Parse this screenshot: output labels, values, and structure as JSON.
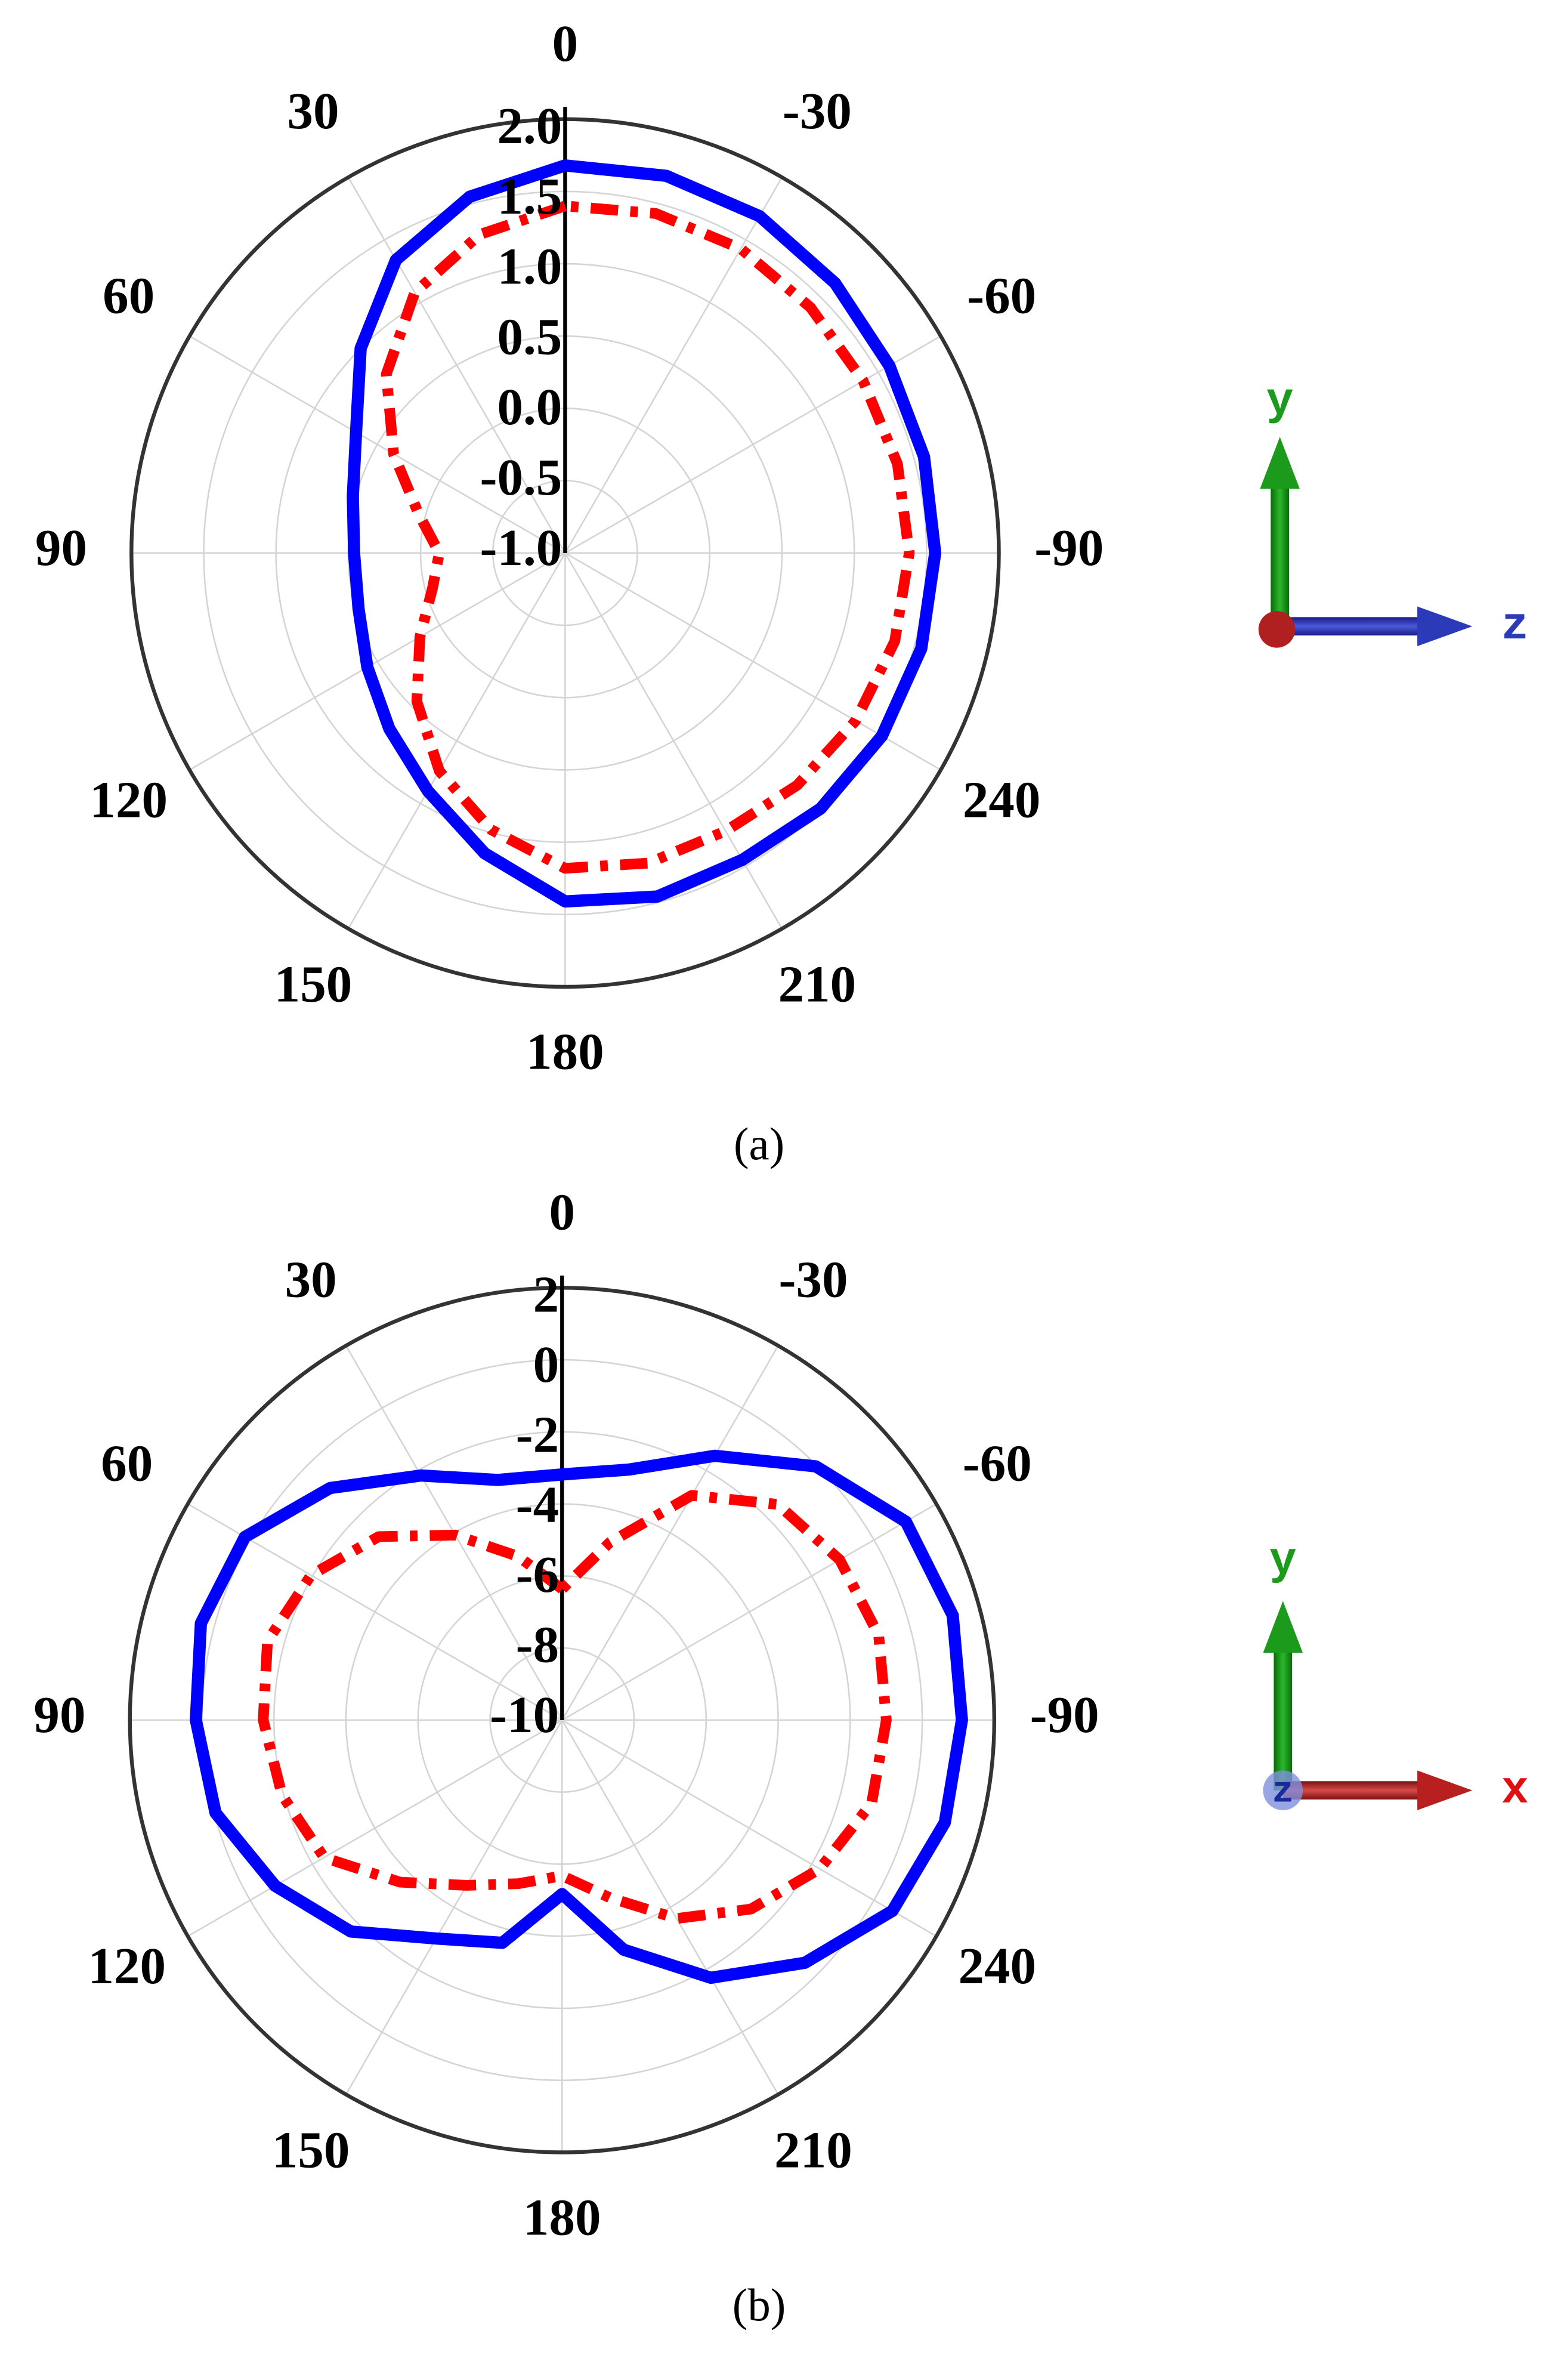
{
  "chart_data": [
    {
      "type": "polar",
      "caption": "(a)",
      "theta": [
        0,
        15,
        30,
        45,
        60,
        75,
        90,
        105,
        120,
        135,
        150,
        165,
        180,
        195,
        210,
        225,
        240,
        255,
        270,
        285,
        300,
        315,
        330,
        345
      ],
      "thetaticks": [
        0,
        -30,
        -60,
        -90,
        240,
        210,
        180,
        150,
        120,
        90,
        60,
        30
      ],
      "rlim": [
        -1,
        2
      ],
      "rticks": [
        {
          "value": -1,
          "label": "-1.0"
        },
        -0.5,
        {
          "value": 0,
          "label": "0.0"
        },
        0.5,
        {
          "value": 1,
          "label": "1.0"
        },
        1.5,
        {
          "value": 2,
          "label": "2.0"
        }
      ],
      "grid": true,
      "series": [
        {
          "color": "#0000ff",
          "style": "solid",
          "values": [
            1.68,
            1.55,
            1.34,
            1.0,
            0.67,
            0.52,
            0.46,
            0.48,
            0.58,
            0.72,
            0.9,
            1.15,
            1.41,
            1.46,
            1.45,
            1.5,
            1.53,
            1.55,
            1.56,
            1.57,
            1.59,
            1.64,
            1.69,
            1.7
          ]
        },
        {
          "color": "#ff0000",
          "style": "dashdot",
          "values": [
            1.4,
            1.28,
            1.08,
            0.75,
            0.37,
            0.05,
            -0.13,
            -0.05,
            0.16,
            0.45,
            0.74,
            0.98,
            1.18,
            1.22,
            1.22,
            1.27,
            1.32,
            1.36,
            1.38,
            1.38,
            1.38,
            1.4,
            1.43,
            1.43
          ]
        }
      ],
      "triad": {
        "up": "y",
        "right": "z"
      }
    },
    {
      "type": "polar",
      "caption": "(b)",
      "theta": [
        0,
        15,
        30,
        45,
        60,
        75,
        90,
        105,
        120,
        135,
        150,
        165,
        180,
        195,
        210,
        225,
        240,
        255,
        270,
        285,
        300,
        315,
        330,
        345
      ],
      "thetaticks": [
        0,
        -30,
        -60,
        -90,
        240,
        210,
        180,
        150,
        120,
        90,
        60,
        30
      ],
      "rlim": [
        -10,
        2
      ],
      "rticks": [
        -10,
        -8,
        -6,
        -4,
        -2,
        0,
        2
      ],
      "grid": true,
      "series": [
        {
          "color": "#0000ff",
          "style": "solid",
          "values": [
            -3.18,
            -3.1,
            -2.16,
            -0.89,
            0.17,
            0.38,
            0.17,
            -0.04,
            -0.8,
            -1.7,
            -3.0,
            -3.6,
            -5.17,
            -3.4,
            -1.74,
            -0.47,
            0.59,
            1.0,
            1.1,
            1.23,
            1.02,
            -0.04,
            -1.53,
            -2.8
          ]
        },
        {
          "color": "#ff0000",
          "style": "dashdot",
          "values": [
            -6.36,
            -5.3,
            -4.07,
            -2.8,
            -1.95,
            -1.53,
            -1.7,
            -1.95,
            -2.37,
            -3.64,
            -4.7,
            -5.3,
            -5.68,
            -4.9,
            -3.64,
            -2.58,
            -1.74,
            -1.1,
            -1.0,
            -0.9,
            -1.1,
            -1.53,
            -2.8,
            -4.9
          ]
        }
      ],
      "triad": {
        "up": "y",
        "right": "x",
        "out": "z"
      }
    }
  ]
}
